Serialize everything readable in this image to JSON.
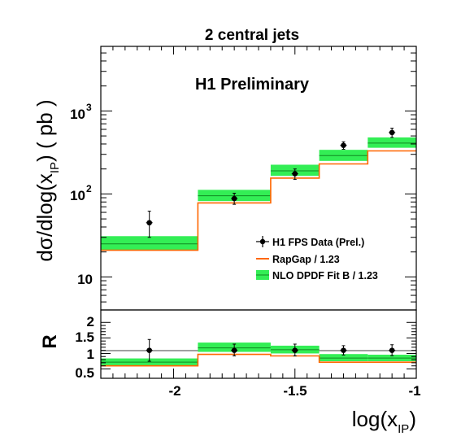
{
  "chart_data": [
    {
      "type": "line",
      "panel": "main",
      "title": "2 central jets",
      "annotation": "H1 Preliminary",
      "ylabel": "dσ/dlog(x_IP) ( pb )",
      "xlim": [
        -2.3,
        -1.0
      ],
      "ylim": [
        4,
        6000
      ],
      "yscale": "log",
      "y_ticks": [
        {
          "value": 10,
          "label": "10"
        },
        {
          "value": 100,
          "label": "10^2"
        },
        {
          "value": 1000,
          "label": "10^3"
        }
      ],
      "bin_edges": [
        -2.3,
        -1.9,
        -1.6,
        -1.4,
        -1.2,
        -1.0
      ],
      "series": [
        {
          "name": "H1 FPS Data (Prel.)",
          "kind": "points",
          "color": "#000000",
          "x": [
            -2.1,
            -1.75,
            -1.5,
            -1.3,
            -1.1
          ],
          "y": [
            45,
            88,
            175,
            385,
            550
          ],
          "yerr_low": [
            30,
            75,
            150,
            345,
            480
          ],
          "yerr_high": [
            62,
            102,
            200,
            425,
            620
          ]
        },
        {
          "name": "RapGap / 1.23",
          "kind": "step",
          "color": "#ff6600",
          "values": [
            21,
            78,
            155,
            230,
            330
          ]
        },
        {
          "name": "NLO DPDF Fit B / 1.23",
          "kind": "band",
          "color": "#33ee55",
          "central": [
            25,
            95,
            190,
            290,
            410
          ],
          "low": [
            21,
            82,
            165,
            250,
            360
          ],
          "high": [
            31,
            112,
            225,
            340,
            480
          ]
        }
      ],
      "legend_position": "lower-right"
    },
    {
      "type": "line",
      "panel": "ratio",
      "ylabel": "R",
      "xlabel": "log(x_IP)",
      "xlim": [
        -2.3,
        -1.0
      ],
      "ylim": [
        0.2,
        2.4
      ],
      "x_ticks": [
        {
          "value": -2.0,
          "label": "-2"
        },
        {
          "value": -1.5,
          "label": "-1.5"
        },
        {
          "value": -1.0,
          "label": "-1"
        }
      ],
      "y_ticks": [
        {
          "value": 0.5,
          "label": "0.5"
        },
        {
          "value": 1.0,
          "label": "1"
        },
        {
          "value": 1.5,
          "label": "1.5"
        },
        {
          "value": 2.0,
          "label": "2"
        }
      ],
      "reference_line": 1.0,
      "bin_edges": [
        -2.3,
        -1.9,
        -1.6,
        -1.4,
        -1.2,
        -1.0
      ],
      "series": [
        {
          "name": "H1 FPS Data (Prel.)",
          "kind": "points",
          "x": [
            -2.1,
            -1.75,
            -1.5,
            -1.3,
            -1.1
          ],
          "y": [
            1.1,
            1.1,
            1.1,
            1.1,
            1.1
          ],
          "yerr_low": [
            0.75,
            0.92,
            0.92,
            0.95,
            0.93
          ],
          "yerr_high": [
            1.45,
            1.3,
            1.3,
            1.25,
            1.28
          ]
        },
        {
          "name": "RapGap / 1.23",
          "kind": "step",
          "values": [
            0.6,
            0.97,
            0.92,
            0.72,
            0.72
          ]
        },
        {
          "name": "NLO DPDF Fit B / 1.23",
          "kind": "band",
          "central": [
            0.72,
            1.18,
            1.12,
            0.85,
            0.85
          ],
          "low": [
            0.62,
            1.05,
            1.0,
            0.75,
            0.75
          ],
          "high": [
            0.84,
            1.35,
            1.25,
            0.98,
            0.96
          ]
        }
      ]
    }
  ],
  "labels": {
    "title": "2 central jets",
    "annotation": "H1 Preliminary",
    "ylabel_main_prefix": "dσ/dlog(x",
    "ylabel_main_sub": "IP",
    "ylabel_main_suffix": ") ( pb )",
    "ylabel_ratio": "R",
    "xlabel_prefix": "log(x",
    "xlabel_sub": "IP",
    "xlabel_suffix": ")",
    "legend_data": "H1 FPS Data (Prel.)",
    "legend_rapgap": "RapGap / 1.23",
    "legend_nlo": "NLO DPDF Fit B / 1.23",
    "ytick_10": "10",
    "ytick_100_base": "10",
    "ytick_100_exp": "2",
    "ytick_1000_base": "10",
    "ytick_1000_exp": "3",
    "rtick_05": "0.5",
    "rtick_1": "1",
    "rtick_15": "1.5",
    "rtick_2": "2",
    "xtick_m2": "-2",
    "xtick_m15": "-1.5",
    "xtick_m1": "-1"
  },
  "colors": {
    "band": "#33ee55",
    "band_line": "#118822",
    "rapgap": "#ff6600",
    "data": "#000000",
    "axis": "#000000"
  }
}
